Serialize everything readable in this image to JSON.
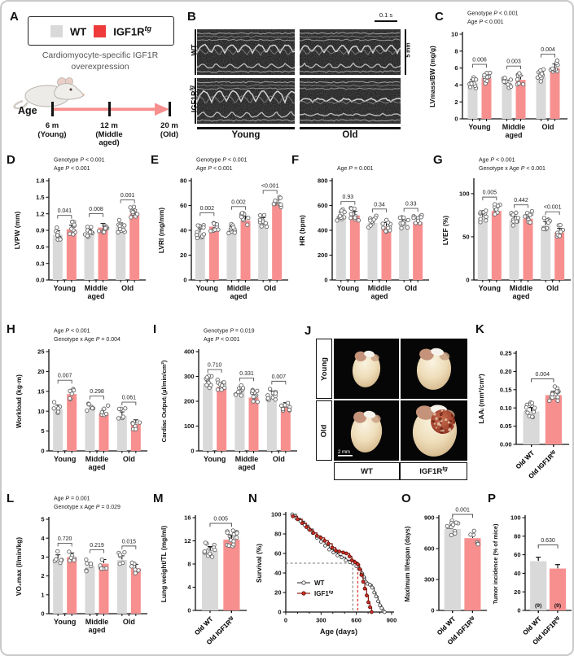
{
  "letters": {
    "A": "A",
    "B": "B",
    "C": "C",
    "D": "D",
    "E": "E",
    "F": "F",
    "G": "G",
    "H": "H",
    "I": "I",
    "J": "J",
    "K": "K",
    "L": "L",
    "M": "M",
    "N": "N",
    "O": "O",
    "P": "P"
  },
  "colors": {
    "wt_bar": "#d9d9d9",
    "tg_bar": "#f78f8f",
    "legend_red": "#ee3a3a",
    "point_stroke": "#666",
    "axis": "#111",
    "tg_line": "#8a1a12",
    "tg_marker": "#d93025"
  },
  "panelA": {
    "legend": [
      {
        "base": "WT",
        "sup": ""
      },
      {
        "base": "IGF1R",
        "sup": "tg"
      }
    ],
    "caption": "Cardiomyocyte-specific IGF1R overexpression",
    "age_label": "Age",
    "timeline": {
      "t1": "6 m",
      "g1": "(Young)",
      "t2": "12 m",
      "g2a": "(Middle",
      "g2b": "aged)",
      "t3": "20 m",
      "g3": "(Old)"
    }
  },
  "panelB": {
    "rows": [
      {
        "base": "WT",
        "sup": ""
      },
      {
        "base": "IGF1R",
        "sup": "tg"
      }
    ],
    "cols": [
      "Young",
      "Old"
    ],
    "scale_time": "0.1 s",
    "scale_len": "5 mm"
  },
  "panelJ": {
    "rows": [
      "Young",
      "Old"
    ],
    "cols": [
      {
        "base": "WT",
        "sup": ""
      },
      {
        "base": "IGF1R",
        "sup": "tg"
      }
    ],
    "scale": "2 mm"
  },
  "chart_data": [
    {
      "id": "C",
      "type": "bar",
      "ylabel": "LVmass/BW (mg/g)",
      "categories": [
        "Young",
        "Middle aged",
        "Old"
      ],
      "series": [
        {
          "name": "WT",
          "values": [
            4.2,
            4.1,
            5.0
          ]
        },
        {
          "name": "IGF1R^tg",
          "values": [
            4.8,
            4.6,
            6.0
          ]
        }
      ],
      "pvalues": [
        "0.006",
        "0.003",
        "0.004"
      ],
      "stats": [
        "Genotype P < 0.001",
        "Age P < 0.001"
      ],
      "yticks": [
        0,
        2,
        4,
        6,
        8,
        10
      ],
      "ylim": [
        0,
        10
      ],
      "decimals": 0,
      "points": [
        11,
        10
      ]
    },
    {
      "id": "D",
      "type": "bar",
      "ylabel": "LVPW (mm)",
      "categories": [
        "Young",
        "Middle aged",
        "Old"
      ],
      "series": [
        {
          "name": "WT",
          "values": [
            0.82,
            0.84,
            0.96
          ]
        },
        {
          "name": "IGF1R^tg",
          "values": [
            0.92,
            0.95,
            1.2
          ]
        }
      ],
      "pvalues": [
        "0.041",
        "0.008",
        "0.001"
      ],
      "stats": [
        "Genotype P < 0.001",
        "Age P < 0.001"
      ],
      "yticks": [
        0,
        0.3,
        0.6,
        0.9,
        1.2,
        1.5,
        1.8
      ],
      "ylim": [
        0,
        1.8
      ],
      "decimals": 1,
      "points": [
        10,
        10
      ]
    },
    {
      "id": "E",
      "type": "bar",
      "ylabel": "LVRI (mg/mm)",
      "categories": [
        "Young",
        "Middle aged",
        "Old"
      ],
      "series": [
        {
          "name": "WT",
          "values": [
            38,
            40,
            47
          ]
        },
        {
          "name": "IGF1R^tg",
          "values": [
            43,
            48,
            61
          ]
        }
      ],
      "pvalues": [
        "0.002",
        "0.002",
        "<0.001"
      ],
      "stats": [
        "Genotype P < 0.001",
        "Age P < 0.001"
      ],
      "yticks": [
        0,
        20,
        40,
        60,
        80
      ],
      "ylim": [
        0,
        80
      ],
      "decimals": 0,
      "points": [
        10,
        10
      ]
    },
    {
      "id": "F",
      "type": "bar",
      "ylabel": "HR (bpm)",
      "categories": [
        "Young",
        "Middle aged",
        "Old"
      ],
      "series": [
        {
          "name": "WT",
          "values": [
            515,
            460,
            450
          ]
        },
        {
          "name": "IGF1R^tg",
          "values": [
            520,
            430,
            465
          ]
        }
      ],
      "pvalues": [
        "0.93",
        "0.34",
        "0.33"
      ],
      "stats": [
        "Age P = 0.001"
      ],
      "yticks": [
        0,
        200,
        400,
        600,
        800
      ],
      "ylim": [
        0,
        800
      ],
      "decimals": 0,
      "points": [
        10,
        10
      ]
    },
    {
      "id": "G",
      "type": "bar",
      "ylabel": "LVEF (%)",
      "categories": [
        "Young",
        "Middle aged",
        "Old"
      ],
      "series": [
        {
          "name": "WT",
          "values": [
            72,
            69,
            63
          ]
        },
        {
          "name": "IGF1R^tg",
          "values": [
            80,
            71,
            55
          ]
        }
      ],
      "pvalues": [
        "0.005",
        "0.442",
        "<0.001"
      ],
      "stats": [
        "Age P < 0.001",
        "Genotype x Age P < 0.001"
      ],
      "yticks": [
        0,
        50,
        100
      ],
      "ylim": [
        0,
        115
      ],
      "decimals": 0,
      "points": [
        10,
        9
      ]
    },
    {
      "id": "H",
      "type": "bar",
      "ylabel": "Workload (kg·m)",
      "categories": [
        "Young",
        "Middle aged",
        "Old"
      ],
      "series": [
        {
          "name": "WT",
          "values": [
            10.5,
            10.3,
            8.8
          ]
        },
        {
          "name": "IGF1R^tg",
          "values": [
            14.3,
            9.5,
            6.8
          ]
        }
      ],
      "pvalues": [
        "0.007",
        "0.298",
        "0.061"
      ],
      "stats": [
        "Age P < 0.001",
        "Genotype x Age P = 0.004"
      ],
      "yticks": [
        0,
        5,
        10,
        15,
        20,
        25
      ],
      "ylim": [
        0,
        25
      ],
      "decimals": 0,
      "points": [
        6,
        6
      ]
    },
    {
      "id": "I",
      "type": "bar",
      "ylabel": "Cardiac Outputᵢ (µl/min/cm²)",
      "categories": [
        "Young",
        "Middle aged",
        "Old"
      ],
      "series": [
        {
          "name": "WT",
          "values": [
            272,
            238,
            225
          ]
        },
        {
          "name": "IGF1R^tg",
          "values": [
            258,
            215,
            178
          ]
        }
      ],
      "pvalues": [
        "0.710",
        "0.331",
        "0.007"
      ],
      "stats": [
        "Genotype P = 0.019",
        "Age P < 0.001"
      ],
      "yticks": [
        0,
        100,
        200,
        300,
        400
      ],
      "ylim": [
        0,
        400
      ],
      "decimals": 0,
      "points": [
        11,
        11
      ]
    },
    {
      "id": "L",
      "type": "bar",
      "ylabel": "VO₂max (l/min/kg)",
      "categories": [
        "Young",
        "Middle aged",
        "Old"
      ],
      "series": [
        {
          "name": "WT",
          "values": [
            2.9,
            2.5,
            2.85
          ]
        },
        {
          "name": "IGF1R^tg",
          "values": [
            3.0,
            2.65,
            2.4
          ]
        }
      ],
      "pvalues": [
        "0.720",
        "0.219",
        "0.015"
      ],
      "stats": [
        "Age P = 0.001",
        "Genotype x Age P = 0.029"
      ],
      "yticks": [
        0,
        1,
        2,
        3,
        4,
        5
      ],
      "ylim": [
        0,
        5
      ],
      "decimals": 0,
      "points": [
        6,
        6
      ]
    },
    {
      "id": "K",
      "type": "bar2",
      "ylabel": "LAAᵢ (mm²/cm²)",
      "categories": [
        "Old WT",
        "Old IGF1R^tg"
      ],
      "series": [
        {
          "name": "WT",
          "values": [
            0.09
          ]
        },
        {
          "name": "IGF1R^tg",
          "values": [
            0.135
          ]
        }
      ],
      "pvalues": [
        "0.004"
      ],
      "stats": [],
      "yticks": [
        0,
        0.05,
        0.1,
        0.15,
        0.2,
        0.25
      ],
      "ylim": [
        0,
        0.25
      ],
      "decimals": 2,
      "points": [
        9,
        10
      ]
    },
    {
      "id": "M",
      "type": "bar2",
      "ylabel": "Lung weight/TL (mg/ml)",
      "categories": [
        "Old WT",
        "Old IGF1R^tg"
      ],
      "series": [
        {
          "name": "WT",
          "values": [
            10.3
          ]
        },
        {
          "name": "IGF1R^tg",
          "values": [
            12.2
          ]
        }
      ],
      "pvalues": [
        "0.005"
      ],
      "stats": [],
      "yticks": [
        0,
        4,
        8,
        12,
        16
      ],
      "ylim": [
        0,
        16
      ],
      "decimals": 0,
      "points": [
        10,
        10
      ]
    },
    {
      "id": "O",
      "type": "bar2",
      "ylabel": "Maximum lifespan (days)",
      "categories": [
        "Old WT",
        "Old IGF1R^tg"
      ],
      "series": [
        {
          "name": "WT",
          "values": [
            790
          ]
        },
        {
          "name": "IGF1R^tg",
          "values": [
            700
          ]
        }
      ],
      "pvalues": [
        "0.001"
      ],
      "stats": [],
      "yticks": [
        0,
        300,
        600,
        900
      ],
      "ylim": [
        0,
        900
      ],
      "decimals": 0,
      "points": [
        7,
        5
      ]
    },
    {
      "id": "P",
      "type": "bar2",
      "ylabel": "Tumor incidence (% of mice)",
      "categories": [
        "Old WT",
        "Old IGF1R^tg"
      ],
      "series": [
        {
          "name": "WT",
          "values": [
            53
          ]
        },
        {
          "name": "IGF1R^tg",
          "values": [
            45
          ]
        }
      ],
      "pvalues": [
        "0.630"
      ],
      "stats": [],
      "bar_counts": [
        "(9)",
        "(9)"
      ],
      "yticks": [
        0,
        20,
        40,
        60,
        80,
        100
      ],
      "ylim": [
        0,
        100
      ],
      "decimals": 0,
      "points": [
        0,
        0
      ]
    },
    {
      "id": "N",
      "type": "line",
      "xlabel": "Age (days)",
      "ylabel": "Survival (%)",
      "xticks": [
        0,
        300,
        600,
        900
      ],
      "yticks": [
        0,
        20,
        40,
        60,
        80,
        100
      ],
      "xlim": [
        0,
        900
      ],
      "ylim": [
        0,
        100
      ],
      "legend": [
        "WT",
        "IGF1^tg"
      ],
      "median_lines": {
        "y": 50,
        "wt_x": 570,
        "tg_x": 612
      },
      "series": [
        {
          "name": "WT",
          "points": [
            [
              55,
              100
            ],
            [
              90,
              96
            ],
            [
              125,
              93
            ],
            [
              160,
              89
            ],
            [
              195,
              85
            ],
            [
              230,
              81
            ],
            [
              265,
              76
            ],
            [
              300,
              72
            ],
            [
              335,
              68
            ],
            [
              370,
              64
            ],
            [
              405,
              61
            ],
            [
              440,
              58
            ],
            [
              475,
              56
            ],
            [
              510,
              53
            ],
            [
              545,
              51
            ],
            [
              570,
              50
            ],
            [
              600,
              47
            ],
            [
              625,
              44
            ],
            [
              645,
              40
            ],
            [
              662,
              36
            ],
            [
              678,
              31
            ],
            [
              695,
              29
            ],
            [
              715,
              28
            ],
            [
              735,
              25
            ],
            [
              752,
              20
            ],
            [
              768,
              16
            ],
            [
              785,
              11
            ],
            [
              800,
              7
            ],
            [
              815,
              4
            ],
            [
              830,
              1
            ],
            [
              840,
              0
            ]
          ]
        },
        {
          "name": "IGF1^tg",
          "points": [
            [
              60,
              98
            ],
            [
              100,
              95
            ],
            [
              140,
              91
            ],
            [
              175,
              87
            ],
            [
              205,
              84
            ],
            [
              235,
              81
            ],
            [
              265,
              78
            ],
            [
              298,
              76
            ],
            [
              330,
              73
            ],
            [
              362,
              70
            ],
            [
              395,
              66
            ],
            [
              425,
              63
            ],
            [
              455,
              62
            ],
            [
              488,
              61
            ],
            [
              515,
              60
            ],
            [
              542,
              57
            ],
            [
              562,
              53
            ],
            [
              588,
              51
            ],
            [
              612,
              49
            ],
            [
              628,
              44
            ],
            [
              643,
              38
            ],
            [
              658,
              31
            ],
            [
              672,
              24
            ],
            [
              688,
              17
            ],
            [
              702,
              10
            ],
            [
              716,
              5
            ],
            [
              730,
              0
            ]
          ]
        }
      ]
    }
  ]
}
